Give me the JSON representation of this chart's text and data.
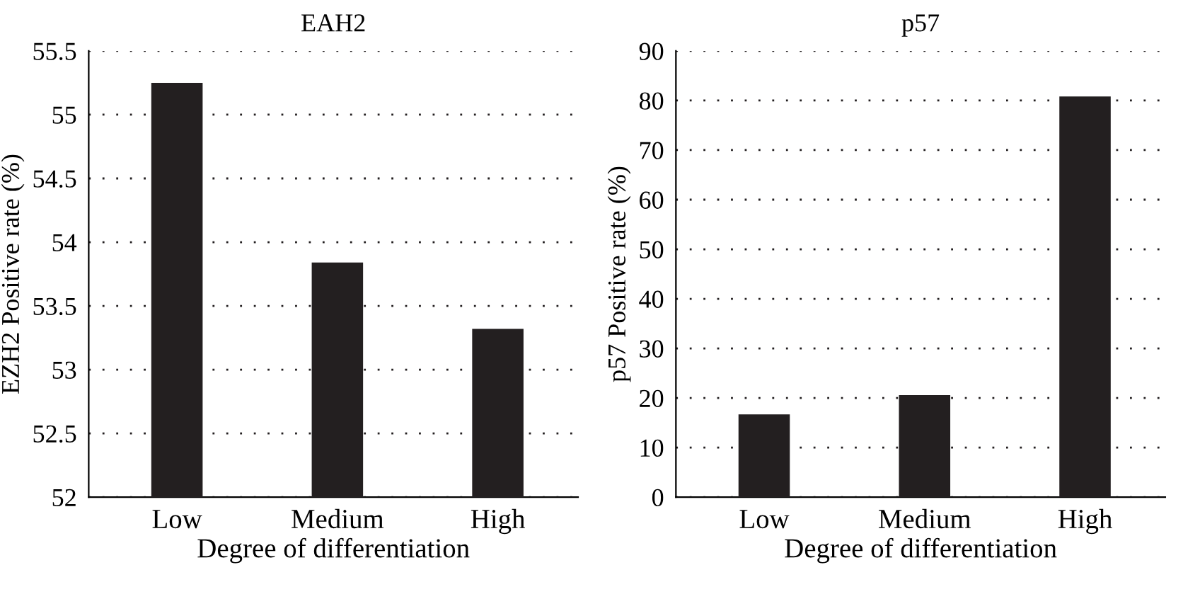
{
  "chart_data": [
    {
      "type": "bar",
      "title": "EAH2",
      "xlabel": "Degree of differentiation",
      "ylabel": "EZH2 Positive rate (%)",
      "categories": [
        "Low",
        "Medium",
        "High"
      ],
      "values": [
        55.25,
        53.84,
        53.32
      ],
      "color": "#231f20",
      "ylim": [
        52,
        55.5
      ],
      "yticks": [
        52,
        52.5,
        53,
        53.5,
        54,
        54.5,
        55,
        55.5
      ],
      "grid": "y",
      "line_style": "dotted"
    },
    {
      "type": "bar",
      "title": "p57",
      "xlabel": "Degree of differentiation",
      "ylabel": "p57 Positive rate (%)",
      "categories": [
        "Low",
        "Medium",
        "High"
      ],
      "values": [
        16.7,
        20.6,
        80.8
      ],
      "color": "#231f20",
      "ylim": [
        0,
        90
      ],
      "yticks": [
        0,
        10,
        20,
        30,
        40,
        50,
        60,
        70,
        80,
        90
      ],
      "grid": "y",
      "line_style": "dotted"
    }
  ]
}
